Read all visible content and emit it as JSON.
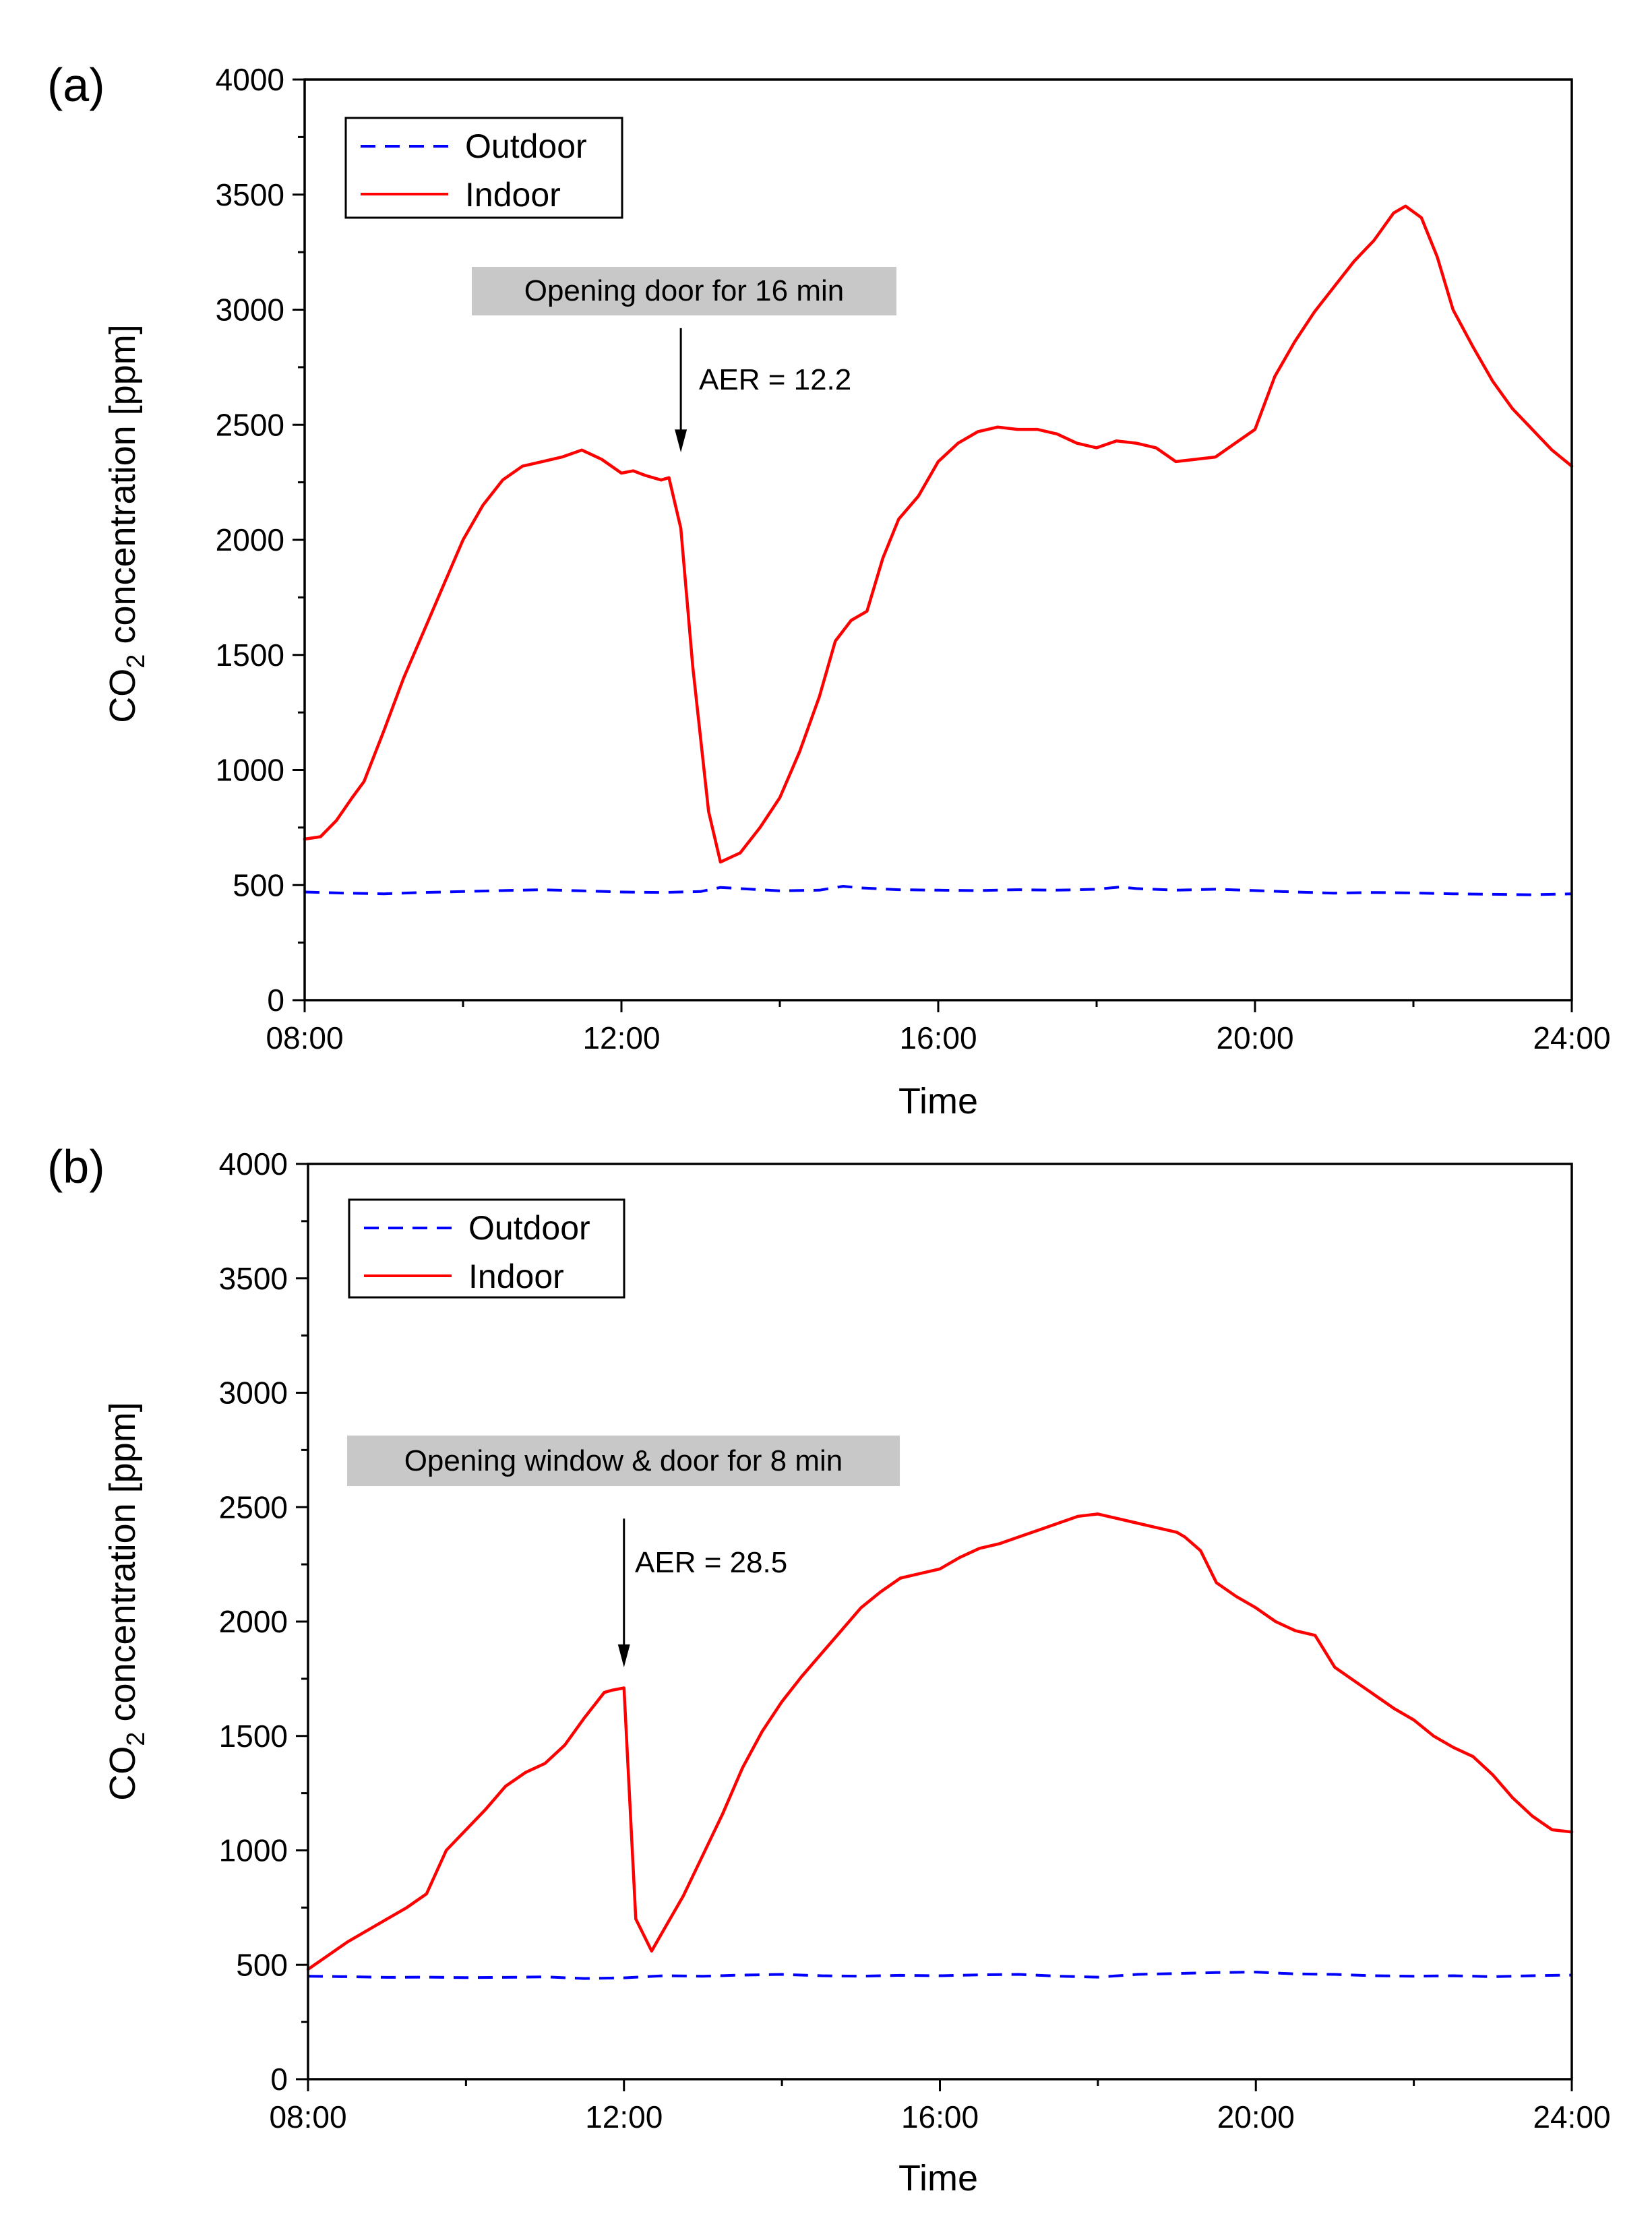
{
  "chart_data": [
    {
      "type": "line",
      "panel_label": "(a)",
      "xlabel": "Time",
      "ylabel_main": "CO",
      "ylabel_sub": "2",
      "ylabel_rest": " concentration [ppm]",
      "ylim": [
        0,
        4000
      ],
      "yticks": [
        "0",
        "500",
        "1000",
        "1500",
        "2000",
        "2500",
        "3000",
        "3500",
        "4000"
      ],
      "xlim": [
        8,
        24
      ],
      "xticks": [
        "08:00",
        "12:00",
        "16:00",
        "20:00",
        "24:00"
      ],
      "legend": {
        "position": "top-left",
        "outdoor": "Outdoor",
        "indoor": "Indoor"
      },
      "annotation": {
        "box_text": "Opening door for 16 min",
        "aer_text": "AER = 12.2",
        "arrow_x": 12.75,
        "arrow_from_y": 2920,
        "arrow_to_y": 2380
      },
      "series": [
        {
          "name": "Outdoor",
          "color": "#0000ff",
          "style": "dashed",
          "x": [
            8,
            8.5,
            9,
            9.5,
            10,
            10.5,
            11,
            11.5,
            12,
            12.5,
            13,
            13.25,
            13.5,
            14,
            14.5,
            14.8,
            15,
            15.5,
            16,
            16.5,
            17,
            17.5,
            18,
            18.3,
            18.5,
            19,
            19.5,
            20,
            20.5,
            21,
            21.5,
            22,
            22.5,
            23,
            23.5,
            24
          ],
          "values": [
            470,
            465,
            462,
            468,
            472,
            476,
            480,
            475,
            470,
            468,
            472,
            490,
            485,
            475,
            478,
            495,
            488,
            480,
            478,
            476,
            480,
            478,
            482,
            492,
            485,
            478,
            482,
            476,
            470,
            465,
            468,
            466,
            462,
            460,
            458,
            462
          ]
        },
        {
          "name": "Indoor",
          "color": "#ff0000",
          "style": "solid",
          "x": [
            8,
            8.2,
            8.4,
            8.6,
            8.75,
            9,
            9.25,
            9.5,
            9.75,
            10,
            10.25,
            10.5,
            10.75,
            11,
            11.25,
            11.5,
            11.75,
            12,
            12.15,
            12.3,
            12.5,
            12.6,
            12.75,
            12.9,
            13.1,
            13.25,
            13.5,
            13.75,
            14,
            14.25,
            14.5,
            14.7,
            14.9,
            15.1,
            15.3,
            15.5,
            15.75,
            16,
            16.25,
            16.5,
            16.75,
            17,
            17.25,
            17.5,
            17.75,
            18,
            18.25,
            18.5,
            18.75,
            19,
            19.25,
            19.5,
            19.75,
            20,
            20.25,
            20.5,
            20.75,
            21,
            21.25,
            21.5,
            21.75,
            21.9,
            22.1,
            22.3,
            22.5,
            22.75,
            23,
            23.25,
            23.5,
            23.75,
            24
          ],
          "values": [
            700,
            710,
            780,
            880,
            950,
            1170,
            1400,
            1600,
            1800,
            2000,
            2150,
            2260,
            2320,
            2340,
            2360,
            2390,
            2350,
            2290,
            2300,
            2280,
            2260,
            2270,
            2050,
            1450,
            820,
            600,
            640,
            750,
            880,
            1080,
            1320,
            1560,
            1650,
            1690,
            1920,
            2090,
            2190,
            2340,
            2420,
            2470,
            2490,
            2480,
            2480,
            2460,
            2420,
            2400,
            2430,
            2420,
            2400,
            2340,
            2350,
            2360,
            2420,
            2480,
            2710,
            2860,
            2990,
            3100,
            3210,
            3300,
            3420,
            3450,
            3400,
            3230,
            3000,
            2840,
            2690,
            2570,
            2480,
            2390,
            2320
          ]
        }
      ]
    },
    {
      "type": "line",
      "panel_label": "(b)",
      "xlabel": "Time",
      "ylabel_main": "CO",
      "ylabel_sub": "2",
      "ylabel_rest": " concentration [ppm]",
      "ylim": [
        0,
        4000
      ],
      "yticks": [
        "0",
        "500",
        "1000",
        "1500",
        "2000",
        "2500",
        "3000",
        "3500",
        "4000"
      ],
      "xlim": [
        8,
        24
      ],
      "xticks": [
        "08:00",
        "12:00",
        "16:00",
        "20:00",
        "24:00"
      ],
      "legend": {
        "position": "top-left",
        "outdoor": "Outdoor",
        "indoor": "Indoor"
      },
      "annotation": {
        "box_text": "Opening window & door for 8 min",
        "aer_text": "AER = 28.5",
        "arrow_x": 12.0,
        "arrow_from_y": 2450,
        "arrow_to_y": 1800
      },
      "series": [
        {
          "name": "Outdoor",
          "color": "#0000ff",
          "style": "dashed",
          "x": [
            8,
            8.5,
            9,
            9.5,
            10,
            10.5,
            11,
            11.5,
            12,
            12.5,
            13,
            13.5,
            14,
            14.5,
            15,
            15.5,
            16,
            16.5,
            17,
            17.5,
            18,
            18.5,
            19,
            19.5,
            20,
            20.5,
            21,
            21.5,
            22,
            22.5,
            23,
            23.5,
            24
          ],
          "values": [
            450,
            448,
            445,
            446,
            444,
            445,
            447,
            440,
            443,
            452,
            450,
            455,
            458,
            452,
            450,
            454,
            452,
            456,
            458,
            450,
            446,
            458,
            462,
            466,
            468,
            460,
            458,
            452,
            450,
            452,
            448,
            452,
            455
          ]
        },
        {
          "name": "Indoor",
          "color": "#ff0000",
          "style": "solid",
          "x": [
            8,
            8.25,
            8.5,
            8.75,
            9,
            9.25,
            9.5,
            9.75,
            10,
            10.25,
            10.5,
            10.75,
            11,
            11.25,
            11.5,
            11.75,
            11.85,
            12,
            12.15,
            12.35,
            12.5,
            12.75,
            13,
            13.25,
            13.5,
            13.75,
            14,
            14.25,
            14.5,
            14.75,
            15,
            15.25,
            15.5,
            15.75,
            16,
            16.25,
            16.5,
            16.75,
            17,
            17.25,
            17.5,
            17.75,
            18,
            18.25,
            18.5,
            18.75,
            19,
            19.1,
            19.3,
            19.5,
            19.75,
            20,
            20.25,
            20.5,
            20.75,
            21,
            21.25,
            21.5,
            21.75,
            22,
            22.25,
            22.5,
            22.75,
            23,
            23.25,
            23.5,
            23.75,
            24
          ],
          "values": [
            480,
            540,
            600,
            650,
            700,
            750,
            810,
            1000,
            1090,
            1180,
            1280,
            1340,
            1380,
            1460,
            1580,
            1690,
            1700,
            1710,
            700,
            560,
            650,
            800,
            980,
            1160,
            1360,
            1520,
            1650,
            1760,
            1860,
            1960,
            2060,
            2130,
            2190,
            2210,
            2230,
            2280,
            2320,
            2340,
            2370,
            2400,
            2430,
            2460,
            2470,
            2450,
            2430,
            2410,
            2390,
            2370,
            2310,
            2170,
            2110,
            2060,
            2000,
            1960,
            1940,
            1800,
            1740,
            1680,
            1620,
            1570,
            1500,
            1450,
            1410,
            1330,
            1230,
            1150,
            1090,
            1080
          ]
        }
      ]
    }
  ]
}
